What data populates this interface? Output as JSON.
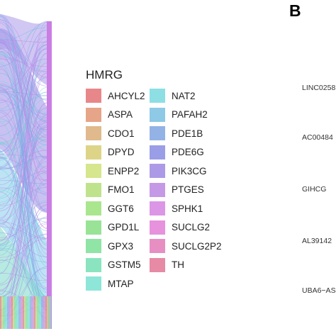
{
  "chart_data": {
    "type": "sankey",
    "legend": {
      "title": "HMRG",
      "entries": [
        {
          "label": "AHCYL2",
          "color": "#e8878a"
        },
        {
          "label": "ASPA",
          "color": "#e6a488"
        },
        {
          "label": "CDO1",
          "color": "#e0ba8d"
        },
        {
          "label": "DPYD",
          "color": "#ddd488"
        },
        {
          "label": "ENPP2",
          "color": "#d6e68c"
        },
        {
          "label": "FMO1",
          "color": "#bfe38c"
        },
        {
          "label": "GGT6",
          "color": "#a9e68e"
        },
        {
          "label": "GPD1L",
          "color": "#98e396"
        },
        {
          "label": "GPX3",
          "color": "#8fe4a6"
        },
        {
          "label": "GSTM5",
          "color": "#8ae4bf"
        },
        {
          "label": "MTAP",
          "color": "#8ee6d8"
        },
        {
          "label": "NAT2",
          "color": "#8ddfe3"
        },
        {
          "label": "PAFAH2",
          "color": "#8ec9e6"
        },
        {
          "label": "PDE1B",
          "color": "#93b3e6"
        },
        {
          "label": "PDE6G",
          "color": "#9a9ee6"
        },
        {
          "label": "PIK3CG",
          "color": "#ad9ae6"
        },
        {
          "label": "PTGES",
          "color": "#c599e6"
        },
        {
          "label": "SPHK1",
          "color": "#dc96e6"
        },
        {
          "label": "SUCLG2",
          "color": "#e792dc"
        },
        {
          "label": "SUCLG2P2",
          "color": "#e78fc3"
        },
        {
          "label": "TH",
          "color": "#e68aa6"
        }
      ]
    }
  },
  "panel_b": {
    "label": "B",
    "y_labels": [
      "LINC0258",
      "AC00484",
      "GIHCG",
      "AL39142",
      "UBA6−AS"
    ]
  }
}
